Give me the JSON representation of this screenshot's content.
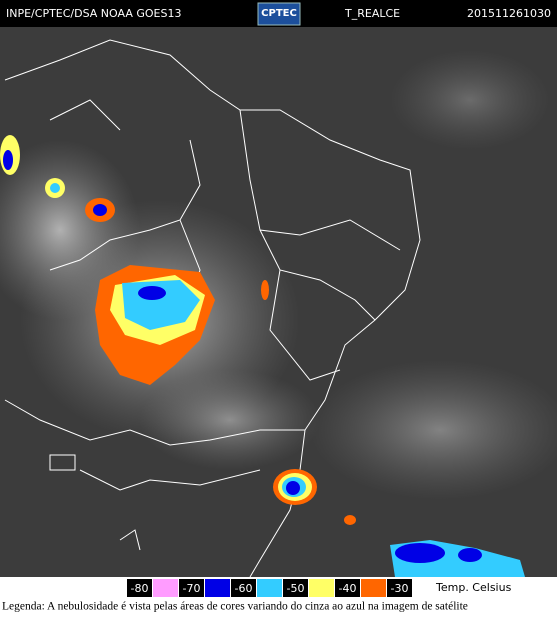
{
  "header": {
    "source": "INPE/CPTEC/DSA NOAA GOES13",
    "logo": "CPTEC",
    "product": "T_REALCE",
    "timestamp": "201511261030"
  },
  "legend": {
    "ticks": [
      -80,
      -70,
      -60,
      -50,
      -40,
      -30
    ],
    "colors": [
      "#ff9cff",
      "#0000e6",
      "#33ccff",
      "#ffff66",
      "#ff6600"
    ],
    "unit": "Temp. Celsius"
  },
  "caption": "Legenda: A nebulosidade é vista pelas áreas de cores variando do cinza ao azul na imagem de satélite"
}
